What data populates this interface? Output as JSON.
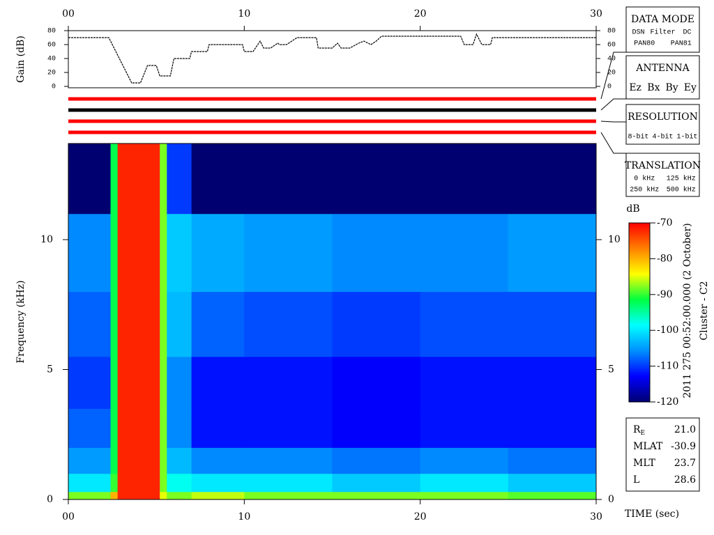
{
  "chart_data": [
    {
      "type": "line",
      "ylabel": "Gain (dB)",
      "xlim": [
        0,
        30
      ],
      "xticks": [
        {
          "value": 0,
          "label": "00"
        },
        10,
        20,
        30
      ],
      "ylim": [
        0,
        80
      ],
      "yticks": [
        0,
        20,
        40,
        60,
        80
      ],
      "x": [
        0,
        2.3,
        3.6,
        4.1,
        4.5,
        5.0,
        5.2,
        5.8,
        6.0,
        6.9,
        7.0,
        7.9,
        8.0,
        9.9,
        10.0,
        10.5,
        10.9,
        11.1,
        11.5,
        11.9,
        12.0,
        12.4,
        13.0,
        14.1,
        14.2,
        15.0,
        15.3,
        15.5,
        16.0,
        16.5,
        16.8,
        17.2,
        17.5,
        17.8,
        22.3,
        22.5,
        23.0,
        23.2,
        23.5,
        24.0,
        24.1,
        30
      ],
      "values": [
        70,
        70,
        5,
        5,
        30,
        30,
        15,
        15,
        40,
        40,
        50,
        50,
        60,
        60,
        50,
        50,
        65,
        55,
        55,
        62,
        60,
        60,
        70,
        70,
        55,
        55,
        62,
        55,
        55,
        62,
        65,
        60,
        65,
        72,
        72,
        60,
        60,
        75,
        60,
        60,
        70,
        70
      ],
      "color": "#000000"
    },
    {
      "type": "bands",
      "colors": [
        "#ff0000",
        "#000000",
        "#ff0000",
        "#ff0000"
      ]
    },
    {
      "type": "heatmap",
      "ylabel": "Frequency (kHz)",
      "xlabel": "TIME (sec)",
      "xlim": [
        0,
        30
      ],
      "xticks": [
        {
          "value": 0,
          "label": "00"
        },
        10,
        20,
        30
      ],
      "ylim": [
        0,
        13.7
      ],
      "yticks": [
        0,
        5,
        10
      ],
      "x_edges": [
        0,
        2.4,
        2.8,
        5.2,
        5.6,
        7,
        10,
        15,
        20,
        25,
        30
      ],
      "y_edges": [
        0,
        0.3,
        1,
        2,
        3.5,
        5.5,
        8,
        11,
        13.7
      ],
      "z": [
        [
          -88,
          -100,
          -105,
          -108,
          -110,
          -108,
          -106,
          -120
        ],
        [
          -80,
          -90,
          -92,
          -92,
          -92,
          -92,
          -92,
          -92
        ],
        [
          -72,
          -72,
          -72,
          -72,
          -72,
          -72,
          -72,
          -72
        ],
        [
          -85,
          -88,
          -88,
          -88,
          -88,
          -88,
          -88,
          -88
        ],
        [
          -88,
          -98,
          -103,
          -106,
          -106,
          -103,
          -102,
          -110
        ],
        [
          -86,
          -100,
          -106,
          -112,
          -112,
          -108,
          -104,
          -120
        ],
        [
          -88,
          -100,
          -106,
          -112,
          -112,
          -109,
          -105,
          -120
        ],
        [
          -88,
          -102,
          -107,
          -113,
          -113,
          -110,
          -106,
          -120
        ],
        [
          -88,
          -100,
          -106,
          -112,
          -112,
          -109,
          -106,
          -120
        ],
        [
          -89,
          -102,
          -107,
          -112,
          -112,
          -109,
          -105,
          -120
        ]
      ],
      "colorbar": {
        "label": "dB",
        "lim": [
          -120,
          -70
        ],
        "ticks": [
          -70,
          -80,
          -90,
          -100,
          -110,
          -120
        ],
        "colors": [
          "#000070",
          "#0000ff",
          "#0090ff",
          "#00ffff",
          "#00ff40",
          "#ffff00",
          "#ff8000",
          "#ff0000"
        ]
      },
      "annotations": [
        "2011 275 00:52:00.000 (2 October)",
        "Cluster - C2"
      ]
    }
  ],
  "panels": [
    {
      "title": "DATA MODE",
      "items": [
        {
          "text": "DSN",
          "color": "#ff0000"
        },
        {
          "text": "Filter",
          "color": "#00cc00"
        },
        {
          "text": "DC",
          "color": "#0000ff"
        },
        {
          "text": "PAN80",
          "color": "#000000"
        },
        {
          "text": "PAN81",
          "color": "#00c8c8"
        }
      ]
    },
    {
      "title": "ANTENNA",
      "items": [
        {
          "text": "Ez",
          "color": "#ff0000"
        },
        {
          "text": "Bx",
          "color": "#00cc00"
        },
        {
          "text": "By",
          "color": "#0000ff"
        },
        {
          "text": "Ey",
          "color": "#000000"
        }
      ]
    },
    {
      "title": "RESOLUTION",
      "items": [
        {
          "text": "8-bit",
          "color": "#ff0000"
        },
        {
          "text": "4-bit",
          "color": "#00cc00"
        },
        {
          "text": "1-bit",
          "color": "#0000ff"
        }
      ]
    },
    {
      "title": "TRANSLATION",
      "items": [
        {
          "text": "0 kHz",
          "color": "#ff0000"
        },
        {
          "text": "125 kHz",
          "color": "#00cc00"
        },
        {
          "text": "250 kHz",
          "color": "#0000ff"
        },
        {
          "text": "500 kHz",
          "color": "#000000"
        }
      ]
    }
  ],
  "info": [
    {
      "label": "R",
      "sub": "E",
      "value": "21.0"
    },
    {
      "label": "MLAT",
      "value": "-30.9"
    },
    {
      "label": "MLT",
      "value": "23.7"
    },
    {
      "label": "L",
      "value": "28.6"
    }
  ]
}
